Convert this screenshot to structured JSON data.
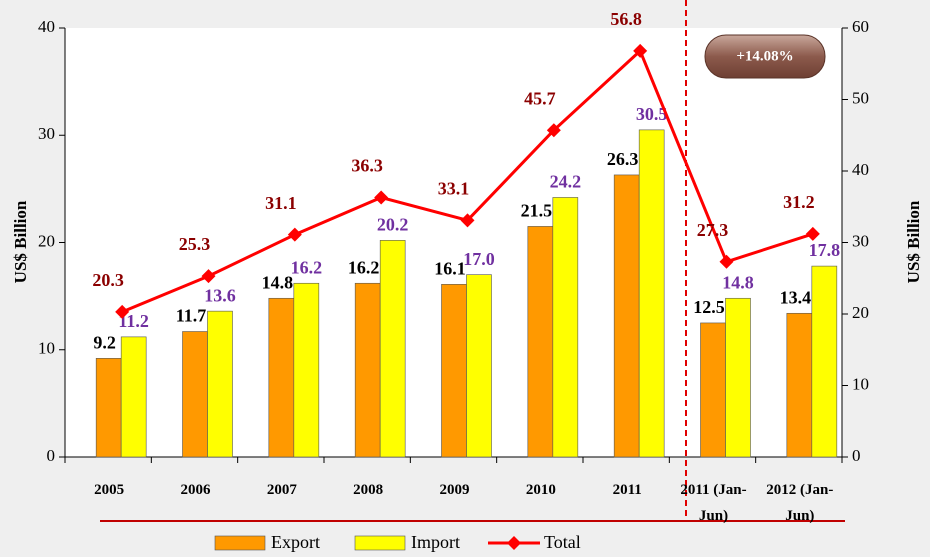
{
  "chart_data": {
    "type": "bar-line",
    "categories": [
      "2005",
      "2006",
      "2007",
      "2008",
      "2009",
      "2010",
      "2011",
      "2011 (Jan-Jun)",
      "2012 (Jan-Jun)"
    ],
    "series": [
      {
        "name": "Export",
        "color": "#ff9900",
        "type": "bar",
        "values": [
          9.2,
          11.7,
          14.8,
          16.2,
          16.1,
          21.5,
          26.3,
          12.5,
          13.4
        ],
        "value_labels": [
          "9.2",
          "11.7",
          "14.8",
          "16.2",
          "16.1",
          "21.5",
          "26.3",
          "12.5",
          "13.4"
        ]
      },
      {
        "name": "Import",
        "color": "#ffff00",
        "type": "bar",
        "values": [
          11.2,
          13.6,
          16.2,
          20.2,
          17.0,
          24.2,
          30.5,
          14.8,
          17.8
        ],
        "value_labels": [
          "11.2",
          "13.6",
          "16.2",
          "20.2",
          "17.0",
          "24.2",
          "30.5",
          "14.8",
          "17.8"
        ]
      },
      {
        "name": "Total",
        "color": "#ff0000",
        "type": "line",
        "axis": "y2",
        "values": [
          20.3,
          25.3,
          31.1,
          36.3,
          33.1,
          45.7,
          56.8,
          27.3,
          31.2
        ],
        "value_labels": [
          "20.3",
          "25.3",
          "31.1",
          "36.3",
          "33.1",
          "45.7",
          "56.8",
          "27.3",
          "31.2"
        ]
      }
    ],
    "ylabel": "US$ Billion",
    "y2label": "US$ Billion",
    "ylim": [
      0,
      40
    ],
    "yticks": [
      0,
      10,
      20,
      30,
      40
    ],
    "y2lim": [
      0,
      60
    ],
    "y2ticks": [
      0,
      10,
      20,
      30,
      40,
      50,
      60
    ],
    "annotation": "+14.08%",
    "legend": "bottom"
  }
}
